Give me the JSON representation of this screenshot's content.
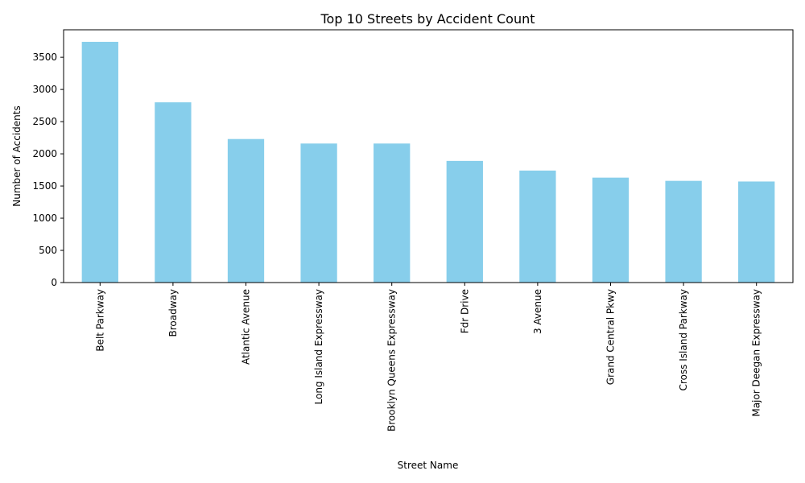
{
  "chart_data": {
    "type": "bar",
    "title": "Top 10 Streets by Accident Count",
    "xlabel": "Street Name",
    "ylabel": "Number of Accidents",
    "categories": [
      "Belt Parkway",
      "Broadway",
      "Atlantic Avenue",
      "Long Island Expressway",
      "Brooklyn Queens Expressway",
      "Fdr Drive",
      "3 Avenue",
      "Grand Central Pkwy",
      "Cross Island Parkway",
      "Major Deegan Expressway"
    ],
    "values": [
      3740,
      2800,
      2230,
      2160,
      2160,
      1890,
      1740,
      1630,
      1580,
      1570
    ],
    "ylim": [
      0,
      3927
    ],
    "yticks": [
      0,
      500,
      1000,
      1500,
      2000,
      2500,
      3000,
      3500
    ],
    "bar_color": "#87ceeb",
    "grid": false,
    "legend": "none"
  }
}
